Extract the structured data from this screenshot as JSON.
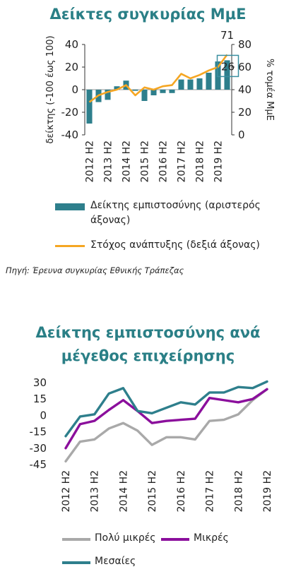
{
  "chart_data": [
    {
      "type": "bar",
      "title": "Δείκτες συγκυρίας ΜμΕ",
      "ylabel": "δείκτης (-100 έως 100)",
      "y2label": "% τομέα ΜμΕ",
      "ylim": [
        -40,
        40
      ],
      "y2lim": [
        0,
        80
      ],
      "yticks": [
        "40",
        "20",
        "0",
        "-20",
        "-40"
      ],
      "y2ticks": [
        "80",
        "60",
        "40",
        "20",
        "0"
      ],
      "xlabels": [
        "2012 H2",
        "2013 H2",
        "2014 H2",
        "2015 H2",
        "2016 H2",
        "2017 H2",
        "2018 H2",
        "2019 H2"
      ],
      "series": [
        {
          "name": "Δείκτης εμπιστοσύνης (αριστερός άξονας)",
          "axis": "left",
          "color": "#2e7f8c",
          "values": [
            -30,
            -11,
            -9,
            3,
            8,
            -1,
            -10,
            -5,
            -3,
            -3,
            9,
            9,
            10,
            15,
            25,
            26
          ]
        },
        {
          "name": "Στόχος ανάπτυξης (δεξιά άξονας)",
          "axis": "right",
          "color": "#f5a623",
          "values": [
            29,
            35,
            38,
            40,
            44,
            35,
            42,
            40,
            43,
            44,
            54,
            50,
            53,
            57,
            60,
            71
          ]
        }
      ],
      "annotations": [
        "71",
        "26"
      ],
      "source": "Πηγή: Έρευνα συγκυρίας Εθνικής Τράπεζας"
    },
    {
      "type": "line",
      "title": "Δείκτης εμπιστοσύνης ανά μέγεθος επιχείρησης",
      "ylim": [
        -45,
        30
      ],
      "yticks": [
        "30",
        "15",
        "0",
        "-15",
        "-30",
        "-45"
      ],
      "xlabels": [
        "2012 H2",
        "2013 H2",
        "2014 H2",
        "2015 H2",
        "2016 H2",
        "2017 H2",
        "2018 H2",
        "2019 H2"
      ],
      "series": [
        {
          "name": "Πολύ μικρές",
          "color": "#a9a9a9",
          "values": [
            -42,
            -24,
            -22,
            -12,
            -7,
            -14,
            -27,
            -20,
            -20,
            -22,
            -5,
            -4,
            1,
            14,
            24
          ]
        },
        {
          "name": "Μικρές",
          "color": "#8b0f9c",
          "values": [
            -30,
            -8,
            -5,
            5,
            14,
            4,
            -7,
            -5,
            -4,
            -3,
            16,
            14,
            12,
            15,
            24
          ]
        },
        {
          "name": "Μεσαίες",
          "color": "#2e7f8c",
          "values": [
            -19,
            -1,
            1,
            20,
            25,
            4,
            2,
            7,
            12,
            10,
            21,
            21,
            26,
            25,
            31
          ]
        }
      ]
    }
  ]
}
